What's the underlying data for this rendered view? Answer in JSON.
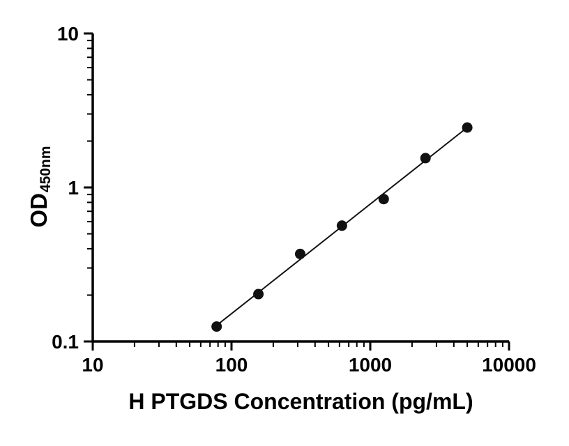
{
  "figure": {
    "background": "#ffffff"
  },
  "chart_data": {
    "type": "scatter",
    "title": "",
    "xlabel": "H PTGDS Concentration (pg/mL)",
    "ylabel_main": "OD",
    "ylabel_subscript": "450nm",
    "xscale": "log10",
    "yscale": "log10",
    "xlim": [
      10,
      10000
    ],
    "ylim": [
      0.1,
      10
    ],
    "x_ticks": [
      10,
      100,
      1000,
      10000
    ],
    "x_tick_labels": [
      "10",
      "100",
      "1000",
      "10000"
    ],
    "y_ticks": [
      0.1,
      1,
      10
    ],
    "y_tick_labels": [
      "0.1",
      "1",
      "10"
    ],
    "minor_ticks": true,
    "grid": false,
    "legend": false,
    "trendline": "linear_fit_in_loglog",
    "marker": "filled-circle",
    "x": [
      78.125,
      156.25,
      312.5,
      625,
      1250,
      2500,
      5000
    ],
    "y": [
      0.125,
      0.203,
      0.37,
      0.565,
      0.84,
      1.55,
      2.45
    ],
    "colors": {
      "marker": "#111111",
      "line": "#111111",
      "axis": "#000000",
      "text": "#000000",
      "background": "#ffffff"
    }
  }
}
